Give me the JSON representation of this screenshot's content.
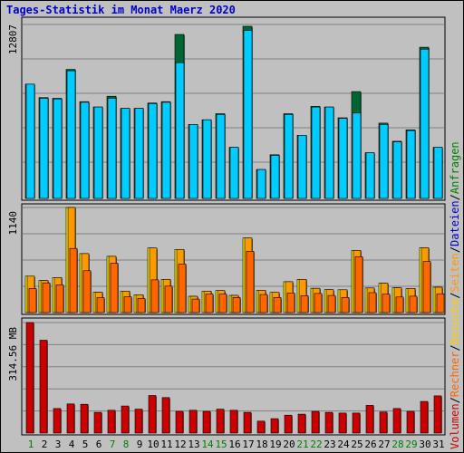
{
  "title": "Tages-Statistik im Monat Maerz 2020",
  "colors": {
    "title": "#0000cc",
    "anfragen": "#006633",
    "dateien": "#00ccff",
    "seiten": "#ff9900",
    "besuche": "#ffff00",
    "rechner": "#ff6600",
    "volumen": "#cc0000",
    "weekday_label": "#000000",
    "weekend_label": "#008000",
    "legend_sep": "#000000"
  },
  "legend": [
    {
      "text": "Volumen",
      "color": "#cc0000"
    },
    {
      "text": "/",
      "color": "#000000"
    },
    {
      "text": "Rechner",
      "color": "#ff6600"
    },
    {
      "text": "/",
      "color": "#000000"
    },
    {
      "text": "Besuche",
      "color": "#ffcc00"
    },
    {
      "text": "/",
      "color": "#000000"
    },
    {
      "text": "Seiten",
      "color": "#ff9900"
    },
    {
      "text": "/",
      "color": "#000000"
    },
    {
      "text": "Dateien",
      "color": "#0000cc"
    },
    {
      "text": "/",
      "color": "#000000"
    },
    {
      "text": "Anfragen",
      "color": "#008000"
    }
  ],
  "chart_data": [
    {
      "type": "bar",
      "ylabel": "12807",
      "ylim": [
        0,
        12807
      ],
      "x": [
        "1",
        "2",
        "3",
        "4",
        "5",
        "6",
        "7",
        "8",
        "9",
        "10",
        "11",
        "12",
        "13",
        "14",
        "15",
        "16",
        "17",
        "18",
        "19",
        "20",
        "21",
        "22",
        "23",
        "24",
        "25",
        "26",
        "27",
        "28",
        "29",
        "30",
        "31"
      ],
      "weekend": [
        1,
        7,
        8,
        14,
        15,
        21,
        22,
        28,
        29
      ],
      "series": [
        {
          "key": "anfragen",
          "values": [
            8500,
            7500,
            7450,
            9600,
            7200,
            6800,
            7600,
            6700,
            6700,
            7100,
            7200,
            12200,
            5500,
            5850,
            6300,
            3800,
            12807,
            2150,
            3250,
            6300,
            4700,
            6850,
            6800,
            6000,
            7950,
            3400,
            5600,
            4250,
            5100,
            11250,
            3800
          ]
        },
        {
          "key": "dateien",
          "values": [
            8500,
            7450,
            7400,
            9500,
            7150,
            6800,
            7450,
            6700,
            6700,
            7050,
            7150,
            10100,
            5500,
            5850,
            6250,
            3800,
            12500,
            2150,
            3200,
            6250,
            4700,
            6800,
            6800,
            5950,
            6350,
            3400,
            5500,
            4200,
            5050,
            11100,
            3800
          ]
        }
      ]
    },
    {
      "type": "bar",
      "ylabel": "1140",
      "ylim": [
        0,
        1140
      ],
      "x": [
        "1",
        "2",
        "3",
        "4",
        "5",
        "6",
        "7",
        "8",
        "9",
        "10",
        "11",
        "12",
        "13",
        "14",
        "15",
        "16",
        "17",
        "18",
        "19",
        "20",
        "21",
        "22",
        "23",
        "24",
        "25",
        "26",
        "27",
        "28",
        "29",
        "30",
        "31"
      ],
      "weekend": [
        1,
        7,
        8,
        14,
        15,
        21,
        22,
        28,
        29
      ],
      "series": [
        {
          "key": "besuche",
          "values": [
            395,
            349,
            380,
            1140,
            640,
            221,
            610,
            233,
            194,
            701,
            361,
            685,
            177,
            233,
            239,
            187,
            809,
            242,
            219,
            335,
            361,
            263,
            249,
            248,
            675,
            267,
            318,
            269,
            262,
            704,
            275
          ]
        },
        {
          "key": "seiten",
          "values": [
            395,
            349,
            380,
            1140,
            640,
            221,
            610,
            233,
            194,
            701,
            361,
            685,
            177,
            233,
            239,
            187,
            809,
            242,
            219,
            335,
            361,
            263,
            249,
            248,
            675,
            267,
            318,
            269,
            262,
            704,
            275
          ]
        },
        {
          "key": "rechner",
          "values": [
            261,
            322,
            301,
            696,
            454,
            162,
            537,
            172,
            154,
            355,
            287,
            527,
            146,
            200,
            200,
            164,
            665,
            196,
            164,
            212,
            184,
            207,
            186,
            164,
            606,
            216,
            200,
            169,
            178,
            554,
            202
          ]
        }
      ]
    },
    {
      "type": "bar",
      "ylabel": "314.56 MB",
      "ylim": [
        0,
        314.56
      ],
      "x": [
        "1",
        "2",
        "3",
        "4",
        "5",
        "6",
        "7",
        "8",
        "9",
        "10",
        "11",
        "12",
        "13",
        "14",
        "15",
        "16",
        "17",
        "18",
        "19",
        "20",
        "21",
        "22",
        "23",
        "24",
        "25",
        "26",
        "27",
        "28",
        "29",
        "30",
        "31"
      ],
      "weekend": [
        1,
        7,
        8,
        14,
        15,
        21,
        22,
        28,
        29
      ],
      "series": [
        {
          "key": "volumen",
          "values": [
            314.56,
            264.25,
            70.0,
            83.0,
            82.0,
            59.0,
            65.0,
            77.0,
            68.0,
            107.0,
            101.0,
            62.0,
            65.0,
            62.0,
            68.0,
            65.0,
            59.0,
            34.0,
            41.0,
            51.0,
            54.0,
            62.0,
            59.0,
            57.0,
            57.0,
            79.0,
            60.0,
            70.0,
            62.0,
            90.0,
            106.0
          ]
        }
      ]
    }
  ]
}
